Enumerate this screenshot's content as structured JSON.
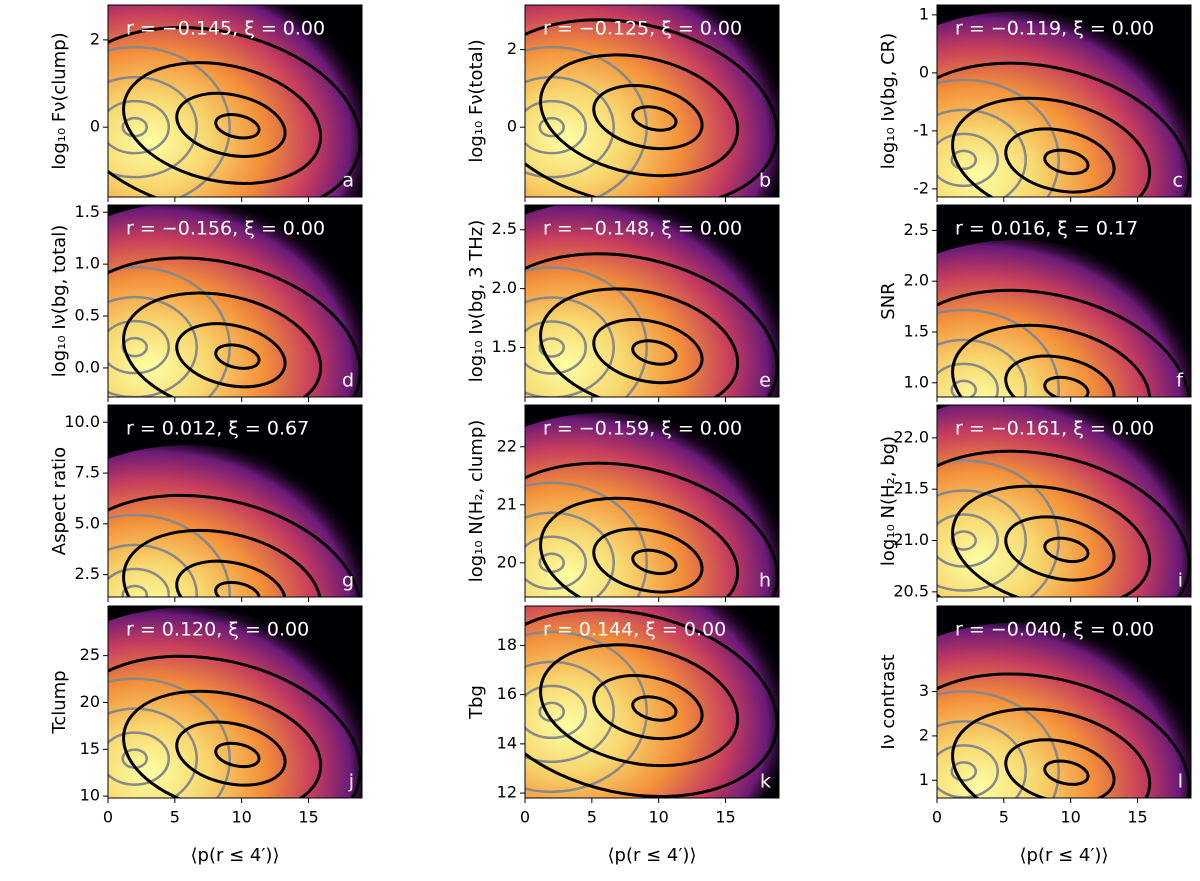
{
  "chart_data": [
    {
      "type": "density",
      "panel": "a",
      "annotation": "r = −0.145, ξ = 0.00",
      "ylabel": "log₁₀ Fν(clump)",
      "xlim": [
        0,
        19
      ],
      "xticks": [
        0,
        5,
        10,
        15
      ],
      "ylim": [
        -1.6,
        2.8
      ],
      "yticks": [
        0,
        2
      ],
      "black_peak": {
        "x": 10,
        "y": 0
      },
      "grey_peak": {
        "x": 2,
        "y": 0
      }
    },
    {
      "type": "density",
      "panel": "b",
      "annotation": "r = −0.125, ξ = 0.00",
      "ylabel": "log₁₀ Fν(total)",
      "xlim": [
        0,
        19
      ],
      "xticks": [
        0,
        5,
        10,
        15
      ],
      "ylim": [
        -1.8,
        3.15
      ],
      "yticks": [
        0,
        2
      ],
      "black_peak": {
        "x": 10,
        "y": 0.2
      },
      "grey_peak": {
        "x": 2,
        "y": 0
      }
    },
    {
      "type": "density",
      "panel": "c",
      "annotation": "r = −0.119, ξ = 0.00",
      "ylabel": "log₁₀ Iν(bg, CR)",
      "xlim": [
        0,
        19
      ],
      "xticks": [
        0,
        5,
        10,
        15
      ],
      "ylim": [
        -2.14,
        1.17
      ],
      "yticks": [
        -2,
        -1,
        0,
        1
      ],
      "black_peak": {
        "x": 10,
        "y": -1.55
      },
      "grey_peak": {
        "x": 2,
        "y": -1.5
      }
    },
    {
      "type": "density",
      "panel": "d",
      "annotation": "r = −0.156, ξ = 0.00",
      "ylabel": "log₁₀ Iν(bg, total)",
      "xlim": [
        0,
        19
      ],
      "xticks": [
        0,
        5,
        10,
        15
      ],
      "ylim": [
        -0.28,
        1.57
      ],
      "yticks": [
        {
          "value": 0,
          "label": "0.0"
        },
        0.5,
        {
          "value": 1,
          "label": "1.0"
        },
        1.5
      ],
      "black_peak": {
        "x": 10,
        "y": 0.1
      },
      "grey_peak": {
        "x": 2,
        "y": 0.2
      }
    },
    {
      "type": "density",
      "panel": "e",
      "annotation": "r = −0.148, ξ = 0.00",
      "ylabel": "log₁₀ Iν(bg, 3 THz)",
      "xlim": [
        0,
        19
      ],
      "xticks": [
        0,
        5,
        10,
        15
      ],
      "ylim": [
        1.08,
        2.71
      ],
      "yticks": [
        1.5,
        {
          "value": 2,
          "label": "2.0"
        },
        2.5
      ],
      "black_peak": {
        "x": 10,
        "y": 1.45
      },
      "grey_peak": {
        "x": 2,
        "y": 1.5
      }
    },
    {
      "type": "density",
      "panel": "f",
      "annotation": "r = 0.016, ξ = 0.17",
      "ylabel": "SNR",
      "xlim": [
        0,
        19
      ],
      "xticks": [
        0,
        5,
        10,
        15
      ],
      "ylim": [
        0.86,
        2.75
      ],
      "yticks": [
        {
          "value": 1,
          "label": "1.0"
        },
        1.5,
        {
          "value": 2,
          "label": "2.0"
        },
        2.5
      ],
      "black_peak": {
        "x": 10,
        "y": 0.93
      },
      "grey_peak": {
        "x": 2,
        "y": 0.93
      }
    },
    {
      "type": "density",
      "panel": "g",
      "annotation": "r = 0.012, ξ = 0.67",
      "ylabel": "Aspect ratio",
      "xlim": [
        0,
        19
      ],
      "xticks": [
        0,
        5,
        10,
        15
      ],
      "ylim": [
        1.4,
        10.85
      ],
      "yticks": [
        2.5,
        {
          "value": 5,
          "label": "5.0"
        },
        7.5,
        {
          "value": 10,
          "label": "10.0"
        }
      ],
      "black_peak": {
        "x": 10,
        "y": 1.5
      },
      "grey_peak": {
        "x": 2,
        "y": 1.5
      }
    },
    {
      "type": "density",
      "panel": "h",
      "annotation": "r = −0.159, ξ = 0.00",
      "ylabel": "log₁₀ N(H₂, clump)",
      "xlim": [
        0,
        19
      ],
      "xticks": [
        0,
        5,
        10,
        15
      ],
      "ylim": [
        19.41,
        22.72
      ],
      "yticks": [
        20,
        21,
        22
      ],
      "black_peak": {
        "x": 10,
        "y": 20
      },
      "grey_peak": {
        "x": 2,
        "y": 20
      }
    },
    {
      "type": "density",
      "panel": "i",
      "annotation": "r = −0.161, ξ = 0.00",
      "ylabel": "log₁₀ N(H₂, bg)",
      "xlim": [
        0,
        19
      ],
      "xticks": [
        0,
        5,
        10,
        15
      ],
      "ylim": [
        20.45,
        22.32
      ],
      "yticks": [
        20.5,
        {
          "value": 21,
          "label": "21.0"
        },
        21.5,
        {
          "value": 22,
          "label": "22.0"
        }
      ],
      "black_peak": {
        "x": 10,
        "y": 20.9
      },
      "grey_peak": {
        "x": 2,
        "y": 21
      }
    },
    {
      "type": "density",
      "panel": "j",
      "annotation": "r = 0.120, ξ = 0.00",
      "ylabel": "Tclump",
      "xlabel": "⟨p(r ≤ 4′)⟩",
      "xlim": [
        0,
        19
      ],
      "xticks": [
        0,
        5,
        10,
        15
      ],
      "ylim": [
        9.8,
        30.3
      ],
      "yticks": [
        10,
        15,
        20,
        25
      ],
      "black_peak": {
        "x": 10,
        "y": 14.3
      },
      "grey_peak": {
        "x": 2,
        "y": 14
      }
    },
    {
      "type": "density",
      "panel": "k",
      "annotation": "r = 0.144, ξ = 0.00",
      "ylabel": "Tbg",
      "xlabel": "⟨p(r ≤ 4′)⟩",
      "xlim": [
        0,
        19
      ],
      "xticks": [
        0,
        5,
        10,
        15
      ],
      "ylim": [
        11.8,
        19.6
      ],
      "yticks": [
        12,
        14,
        16,
        18
      ],
      "black_peak": {
        "x": 10,
        "y": 15.4
      },
      "grey_peak": {
        "x": 2,
        "y": 15.3
      }
    },
    {
      "type": "density",
      "panel": "l",
      "annotation": "r = −0.040, ξ = 0.00",
      "ylabel": "Iν contrast",
      "xlabel": "⟨p(r ≤ 4′)⟩",
      "xlim": [
        0,
        19
      ],
      "xticks": [
        0,
        5,
        10,
        15
      ],
      "ylim": [
        0.6,
        4.93
      ],
      "yticks": [
        1,
        2,
        3
      ],
      "black_peak": {
        "x": 10,
        "y": 1.15
      },
      "grey_peak": {
        "x": 2,
        "y": 1.2
      }
    }
  ]
}
